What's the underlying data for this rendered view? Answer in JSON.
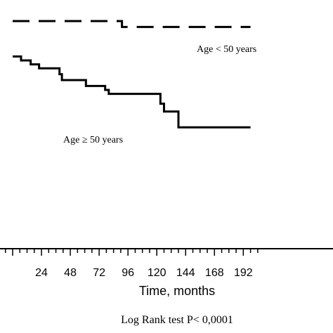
{
  "chart_data": {
    "type": "line",
    "step": true,
    "xlabel": "Time, months",
    "ylabel": "",
    "x_ticks_labeled": [
      "24",
      "48",
      "72",
      "96",
      "120",
      "144",
      "168",
      "192"
    ],
    "xlim": [
      0,
      198
    ],
    "ylim": [
      0,
      1
    ],
    "grid": false,
    "series": [
      {
        "name": "Age < 50 years",
        "style": "dashed",
        "color": "#000000",
        "points": [
          [
            0,
            1.0
          ],
          [
            91,
            1.0
          ],
          [
            91,
            0.97
          ],
          [
            198,
            0.97
          ]
        ]
      },
      {
        "name": "Age ≥ 50 years",
        "style": "solid",
        "color": "#000000",
        "points": [
          [
            0,
            0.82
          ],
          [
            7,
            0.82
          ],
          [
            7,
            0.8
          ],
          [
            15,
            0.8
          ],
          [
            15,
            0.78
          ],
          [
            22,
            0.78
          ],
          [
            22,
            0.76
          ],
          [
            39,
            0.76
          ],
          [
            39,
            0.73
          ],
          [
            41,
            0.73
          ],
          [
            41,
            0.7
          ],
          [
            61,
            0.7
          ],
          [
            61,
            0.67
          ],
          [
            77,
            0.67
          ],
          [
            77,
            0.65
          ],
          [
            80,
            0.65
          ],
          [
            80,
            0.63
          ],
          [
            123,
            0.63
          ],
          [
            123,
            0.58
          ],
          [
            126,
            0.58
          ],
          [
            126,
            0.54
          ],
          [
            138,
            0.54
          ],
          [
            138,
            0.46
          ],
          [
            198,
            0.46
          ]
        ]
      }
    ],
    "annotations": [
      "Age < 50 years",
      "Age ≥ 50 years"
    ],
    "footer": "Log Rank test P< 0,0001"
  }
}
